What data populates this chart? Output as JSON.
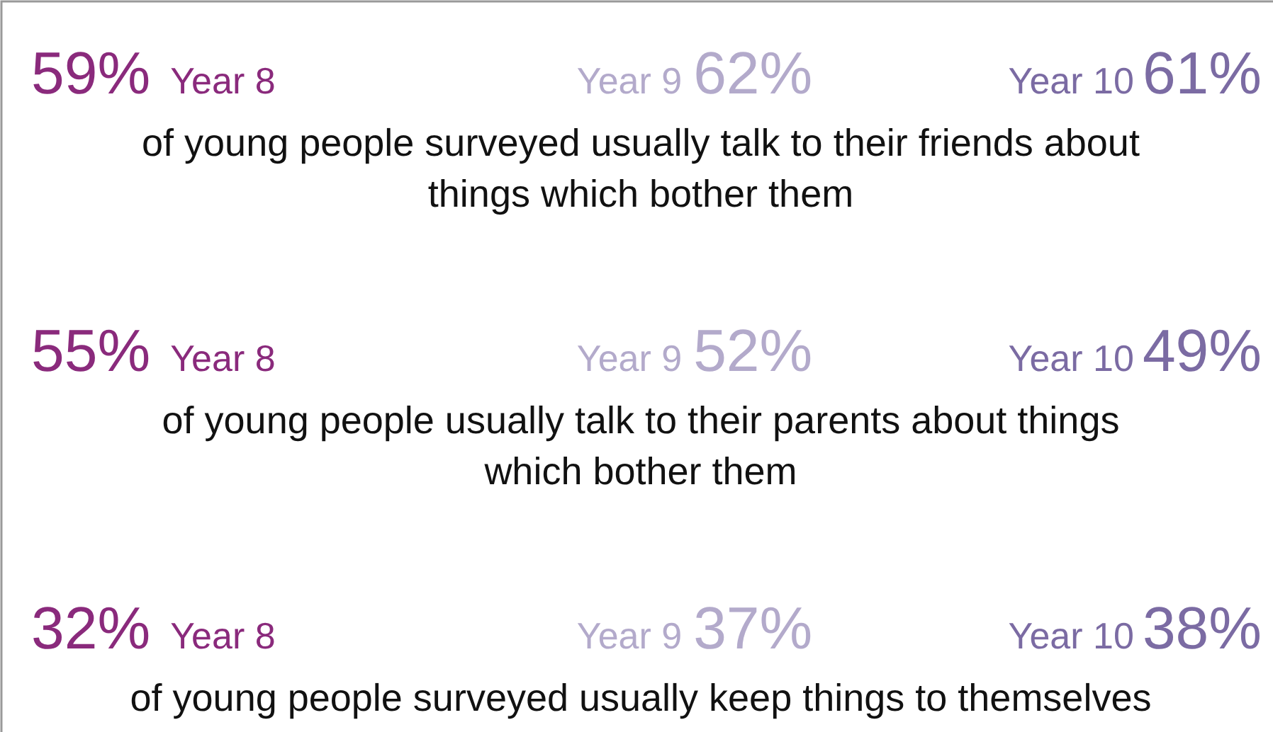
{
  "chart_data": {
    "type": "other",
    "categories": [
      "Year 8",
      "Year 9",
      "Year 10"
    ],
    "colors": [
      "#8a2a7c",
      "#b3aacb",
      "#7b6ba3"
    ],
    "series": [
      {
        "name": "of young people surveyed usually talk to their friends about things which bother them",
        "values": [
          59,
          62,
          61
        ],
        "value_labels": [
          "59%",
          "62%",
          "61%"
        ]
      },
      {
        "name": "of young people usually talk to their parents about things which bother them",
        "values": [
          55,
          52,
          49
        ],
        "value_labels": [
          "55%",
          "52%",
          "49%"
        ]
      },
      {
        "name": "of young people surveyed usually keep things to themselves",
        "values": [
          32,
          37,
          38
        ],
        "value_labels": [
          "32%",
          "37%",
          "38%"
        ]
      }
    ]
  }
}
